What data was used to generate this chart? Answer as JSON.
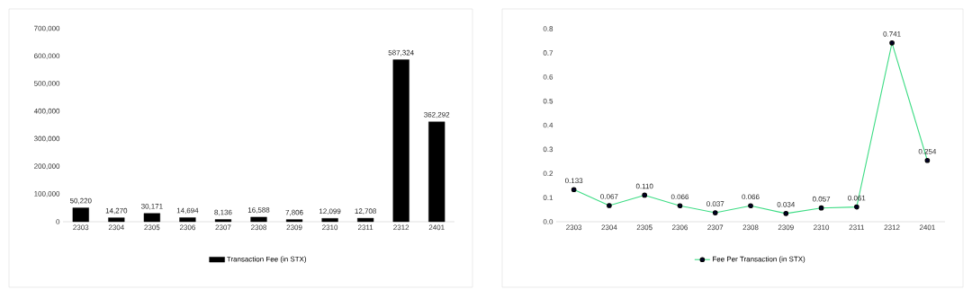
{
  "chart_data": [
    {
      "type": "bar",
      "categories": [
        "2303",
        "2304",
        "2305",
        "2306",
        "2307",
        "2308",
        "2309",
        "2310",
        "2311",
        "2312",
        "2401"
      ],
      "series": [
        {
          "name": "Transaction Fee (in STX)",
          "color": "#000000",
          "values": [
            50220,
            14270,
            30171,
            14694,
            8136,
            16588,
            7806,
            12099,
            12708,
            587324,
            362292
          ],
          "value_labels": [
            "50,220",
            "14,270",
            "30,171",
            "14,694",
            "8,136",
            "16,588",
            "7,806",
            "12,099",
            "12,708",
            "587,324",
            "362,292"
          ]
        }
      ],
      "ylim": [
        0,
        700000
      ],
      "yticks": [
        0,
        {
          "value": 100000,
          "label": "100,000"
        },
        {
          "value": 200000,
          "label": "200,000"
        },
        {
          "value": 300000,
          "label": "300,000"
        },
        {
          "value": 400000,
          "label": "400,000"
        },
        {
          "value": 500000,
          "label": "500,000"
        },
        {
          "value": 600000,
          "label": "600,000"
        },
        {
          "value": 700000,
          "label": "700,000"
        }
      ],
      "legend": "bottom"
    },
    {
      "type": "line",
      "categories": [
        "2303",
        "2304",
        "2305",
        "2306",
        "2307",
        "2308",
        "2309",
        "2310",
        "2311",
        "2312",
        "2401"
      ],
      "series": [
        {
          "name": "Fee Per Transaction (in STX)",
          "color": "#3ddc84",
          "values": [
            0.133,
            0.067,
            0.11,
            0.066,
            0.037,
            0.066,
            0.034,
            0.057,
            0.061,
            0.741,
            0.254
          ],
          "value_labels": [
            "0.133",
            "0.067",
            "0.110",
            "0.066",
            "0.037",
            "0.066",
            "0.034",
            "0.057",
            "0.061",
            "0.741",
            "0.254"
          ]
        }
      ],
      "ylim": [
        0,
        0.8
      ],
      "yticks": [
        {
          "value": 0,
          "label": "0.0"
        },
        0.1,
        0.2,
        0.3,
        0.4,
        0.5,
        0.6,
        0.7,
        0.8
      ],
      "marker": "circle",
      "line_style": "solid",
      "legend": "bottom"
    }
  ]
}
